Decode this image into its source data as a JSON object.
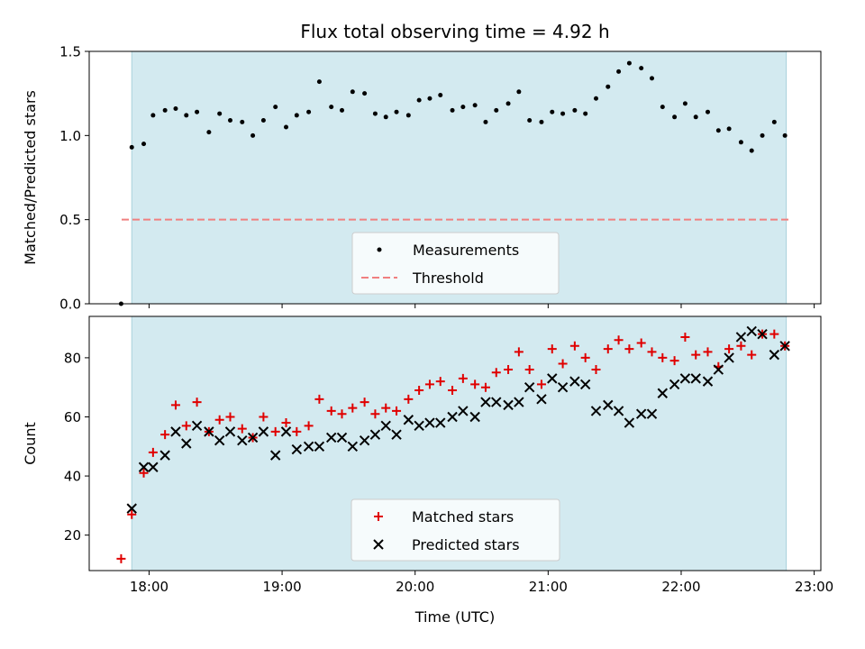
{
  "chart_data": {
    "type": "scatter",
    "title": "Flux total observing time = 4.92 h",
    "x_unit": "time of day (UTC, hours)",
    "xlim": [
      17.55,
      23.05
    ],
    "xticks": [
      18,
      19,
      20,
      21,
      22,
      23
    ],
    "xtick_labels": [
      "18:00",
      "19:00",
      "20:00",
      "21:00",
      "22:00",
      "23:00"
    ],
    "xlabel": "Time (UTC)",
    "shaded_span": {
      "x": [
        17.87,
        22.79
      ],
      "color": "#d3eaf0"
    },
    "panels": [
      {
        "ylabel": "Matched/Predicted stars",
        "ylim": [
          0,
          1.5
        ],
        "yticks": [
          0.0,
          0.5,
          1.0,
          1.5
        ],
        "ytick_labels": [
          "0.0",
          "0.5",
          "1.0",
          "1.5"
        ],
        "legend_position": "lower center",
        "threshold": {
          "name": "Threshold",
          "y": 0.5,
          "color": "#f08080",
          "style": "dashed"
        },
        "series": [
          {
            "name": "Measurements",
            "marker": "dot",
            "color": "#000000",
            "x": [
              17.79,
              17.87,
              17.96,
              18.03,
              18.12,
              18.2,
              18.28,
              18.36,
              18.45,
              18.53,
              18.61,
              18.7,
              18.78,
              18.86,
              18.95,
              19.03,
              19.11,
              19.2,
              19.28,
              19.37,
              19.45,
              19.53,
              19.62,
              19.7,
              19.78,
              19.86,
              19.95,
              20.03,
              20.11,
              20.19,
              20.28,
              20.36,
              20.45,
              20.53,
              20.61,
              20.7,
              20.78,
              20.86,
              20.95,
              21.03,
              21.11,
              21.2,
              21.28,
              21.36,
              21.45,
              21.53,
              21.61,
              21.7,
              21.78,
              21.86,
              21.95,
              22.03,
              22.11,
              22.2,
              22.28,
              22.36,
              22.45,
              22.53,
              22.61,
              22.7,
              22.78
            ],
            "y": [
              0.0,
              0.93,
              0.95,
              1.12,
              1.15,
              1.16,
              1.12,
              1.14,
              1.02,
              1.13,
              1.09,
              1.08,
              1.0,
              1.09,
              1.17,
              1.05,
              1.12,
              1.14,
              1.32,
              1.17,
              1.15,
              1.26,
              1.25,
              1.13,
              1.11,
              1.14,
              1.12,
              1.21,
              1.22,
              1.24,
              1.15,
              1.17,
              1.18,
              1.08,
              1.15,
              1.19,
              1.26,
              1.09,
              1.08,
              1.14,
              1.13,
              1.15,
              1.13,
              1.22,
              1.29,
              1.38,
              1.43,
              1.4,
              1.34,
              1.17,
              1.11,
              1.19,
              1.11,
              1.14,
              1.03,
              1.04,
              0.96,
              0.91,
              1.0,
              1.08,
              1.0
            ]
          }
        ]
      },
      {
        "ylabel": "Count",
        "ylim": [
          8,
          94
        ],
        "yticks": [
          20,
          40,
          60,
          80
        ],
        "ytick_labels": [
          "20",
          "40",
          "60",
          "80"
        ],
        "legend_position": "lower center",
        "series": [
          {
            "name": "Matched stars",
            "marker": "plus",
            "color": "#e00000",
            "x": [
              17.79,
              17.87,
              17.96,
              18.03,
              18.12,
              18.2,
              18.28,
              18.36,
              18.45,
              18.53,
              18.61,
              18.7,
              18.78,
              18.86,
              18.95,
              19.03,
              19.11,
              19.2,
              19.28,
              19.37,
              19.45,
              19.53,
              19.62,
              19.7,
              19.78,
              19.86,
              19.95,
              20.03,
              20.11,
              20.19,
              20.28,
              20.36,
              20.45,
              20.53,
              20.61,
              20.7,
              20.78,
              20.86,
              20.95,
              21.03,
              21.11,
              21.2,
              21.28,
              21.36,
              21.45,
              21.53,
              21.61,
              21.7,
              21.78,
              21.86,
              21.95,
              22.03,
              22.11,
              22.2,
              22.28,
              22.36,
              22.45,
              22.53,
              22.61,
              22.7,
              22.78
            ],
            "y": [
              12,
              27,
              41,
              48,
              54,
              64,
              57,
              65,
              55,
              59,
              60,
              56,
              53,
              60,
              55,
              58,
              55,
              57,
              66,
              62,
              61,
              63,
              65,
              61,
              63,
              62,
              66,
              69,
              71,
              72,
              69,
              73,
              71,
              70,
              75,
              76,
              82,
              76,
              71,
              83,
              78,
              84,
              80,
              76,
              83,
              86,
              83,
              85,
              82,
              80,
              79,
              87,
              81,
              82,
              77,
              83,
              84,
              81,
              88,
              88,
              84
            ]
          },
          {
            "name": "Predicted stars",
            "marker": "x",
            "color": "#000000",
            "x": [
              17.87,
              17.96,
              18.03,
              18.12,
              18.2,
              18.28,
              18.36,
              18.45,
              18.53,
              18.61,
              18.7,
              18.78,
              18.86,
              18.95,
              19.03,
              19.11,
              19.2,
              19.28,
              19.37,
              19.45,
              19.53,
              19.62,
              19.7,
              19.78,
              19.86,
              19.95,
              20.03,
              20.11,
              20.19,
              20.28,
              20.36,
              20.45,
              20.53,
              20.61,
              20.7,
              20.78,
              20.86,
              20.95,
              21.03,
              21.11,
              21.2,
              21.28,
              21.36,
              21.45,
              21.53,
              21.61,
              21.7,
              21.78,
              21.86,
              21.95,
              22.03,
              22.11,
              22.2,
              22.28,
              22.36,
              22.45,
              22.53,
              22.61,
              22.7,
              22.78
            ],
            "y": [
              29,
              43,
              43,
              47,
              55,
              51,
              57,
              55,
              52,
              55,
              52,
              53,
              55,
              47,
              55,
              49,
              50,
              50,
              53,
              53,
              50,
              52,
              54,
              57,
              54,
              59,
              57,
              58,
              58,
              60,
              62,
              60,
              65,
              65,
              64,
              65,
              70,
              66,
              73,
              70,
              72,
              71,
              62,
              64,
              62,
              58,
              61,
              61,
              68,
              71,
              73,
              73,
              72,
              76,
              80,
              87,
              89,
              88,
              81,
              84
            ]
          }
        ]
      }
    ]
  }
}
